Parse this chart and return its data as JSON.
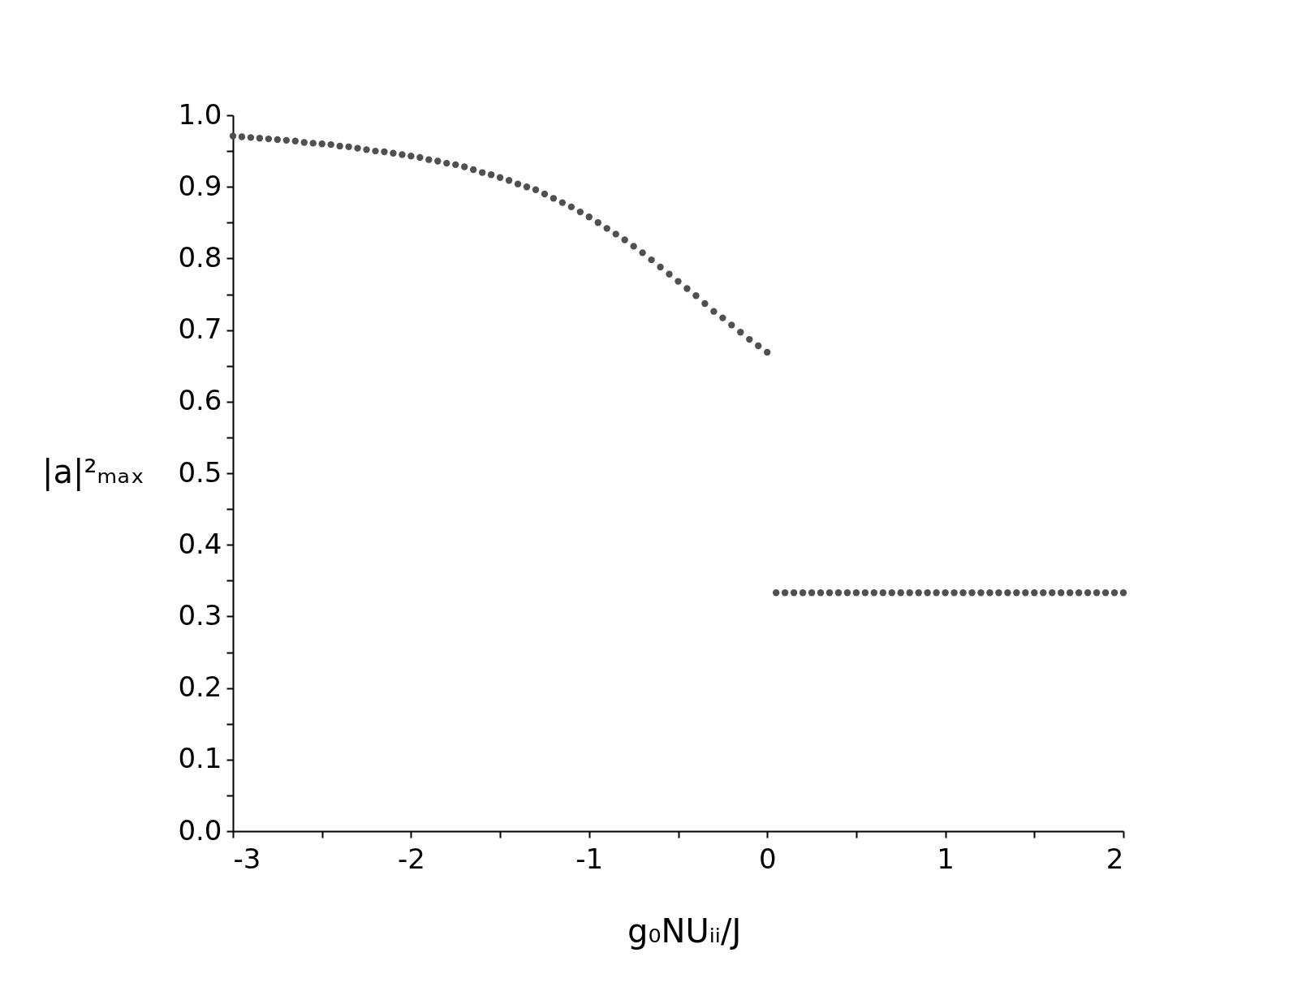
{
  "chart_data": {
    "type": "scatter",
    "xlabel": "g₀NUᵢᵢ/J",
    "ylabel": "|a|²ₘₐₓ",
    "x": [
      -3,
      -2.95,
      -2.9,
      -2.85,
      -2.8,
      -2.75,
      -2.7,
      -2.65,
      -2.6,
      -2.55,
      -2.5,
      -2.45,
      -2.4,
      -2.35,
      -2.3,
      -2.25,
      -2.2,
      -2.15,
      -2.1,
      -2.05,
      -2,
      -1.95,
      -1.9,
      -1.85,
      -1.8,
      -1.75,
      -1.7,
      -1.65,
      -1.6,
      -1.55,
      -1.5,
      -1.45,
      -1.4,
      -1.35,
      -1.3,
      -1.25,
      -1.2,
      -1.15,
      -1.1,
      -1.05,
      -1,
      -0.95,
      -0.9,
      -0.85,
      -0.8,
      -0.75,
      -0.7,
      -0.65,
      -0.6,
      -0.55,
      -0.5,
      -0.45,
      -0.4,
      -0.35,
      -0.3,
      -0.25,
      -0.2,
      -0.15,
      -0.1,
      -0.05,
      0,
      0.05,
      0.1,
      0.15,
      0.2,
      0.25,
      0.3,
      0.35,
      0.4,
      0.45,
      0.5,
      0.55,
      0.6,
      0.65,
      0.7,
      0.75,
      0.8,
      0.85,
      0.9,
      0.95,
      1,
      1.05,
      1.1,
      1.15,
      1.2,
      1.25,
      1.3,
      1.35,
      1.4,
      1.45,
      1.5,
      1.55,
      1.6,
      1.65,
      1.7,
      1.75,
      1.8,
      1.85,
      1.9,
      1.95,
      2
    ],
    "series": [
      {
        "color": "#505050",
        "values": [
          0.971,
          0.97,
          0.969,
          0.968,
          0.967,
          0.966,
          0.965,
          0.964,
          0.962,
          0.961,
          0.96,
          0.959,
          0.957,
          0.956,
          0.954,
          0.952,
          0.95,
          0.949,
          0.947,
          0.945,
          0.943,
          0.941,
          0.938,
          0.936,
          0.933,
          0.931,
          0.928,
          0.924,
          0.92,
          0.917,
          0.913,
          0.909,
          0.904,
          0.9,
          0.896,
          0.89,
          0.884,
          0.878,
          0.872,
          0.865,
          0.858,
          0.85,
          0.842,
          0.834,
          0.826,
          0.817,
          0.808,
          0.798,
          0.788,
          0.778,
          0.768,
          0.758,
          0.748,
          0.737,
          0.726,
          0.717,
          0.707,
          0.697,
          0.687,
          0.678,
          0.669,
          0.333,
          0.333,
          0.333,
          0.333,
          0.333,
          0.333,
          0.333,
          0.333,
          0.333,
          0.333,
          0.333,
          0.333,
          0.333,
          0.333,
          0.333,
          0.333,
          0.333,
          0.333,
          0.333,
          0.333,
          0.333,
          0.333,
          0.333,
          0.333,
          0.333,
          0.333,
          0.333,
          0.333,
          0.333,
          0.333,
          0.333,
          0.333,
          0.333,
          0.333,
          0.333,
          0.333,
          0.333,
          0.333,
          0.333,
          0.333
        ]
      }
    ],
    "xlim": [
      -3,
      2
    ],
    "xticks": [
      -3,
      {
        "value": -2.5,
        "label": null
      },
      -2,
      {
        "value": -1.5,
        "label": null
      },
      -1,
      {
        "value": -0.5,
        "label": null
      },
      0,
      {
        "value": 0.5,
        "label": null
      },
      1,
      {
        "value": 1.5,
        "label": null
      },
      2
    ],
    "ylim": [
      0,
      1
    ],
    "yticks": [
      {
        "value": 0,
        "label": "0.0"
      },
      {
        "value": 0.05,
        "label": null
      },
      {
        "value": 0.1,
        "label": "0.1"
      },
      {
        "value": 0.15,
        "label": null
      },
      {
        "value": 0.2,
        "label": "0.2"
      },
      {
        "value": 0.25,
        "label": null
      },
      {
        "value": 0.3,
        "label": "0.3"
      },
      {
        "value": 0.35,
        "label": null
      },
      {
        "value": 0.4,
        "label": "0.4"
      },
      {
        "value": 0.45,
        "label": null
      },
      {
        "value": 0.5,
        "label": "0.5"
      },
      {
        "value": 0.55,
        "label": null
      },
      {
        "value": 0.6,
        "label": "0.6"
      },
      {
        "value": 0.65,
        "label": null
      },
      {
        "value": 0.7,
        "label": "0.7"
      },
      {
        "value": 0.75,
        "label": null
      },
      {
        "value": 0.8,
        "label": "0.8"
      },
      {
        "value": 0.85,
        "label": null
      },
      {
        "value": 0.9,
        "label": "0.9"
      },
      {
        "value": 0.95,
        "label": null
      },
      {
        "value": 1,
        "label": "1.0"
      }
    ],
    "marker": "circle",
    "grid": false,
    "legend": false
  }
}
